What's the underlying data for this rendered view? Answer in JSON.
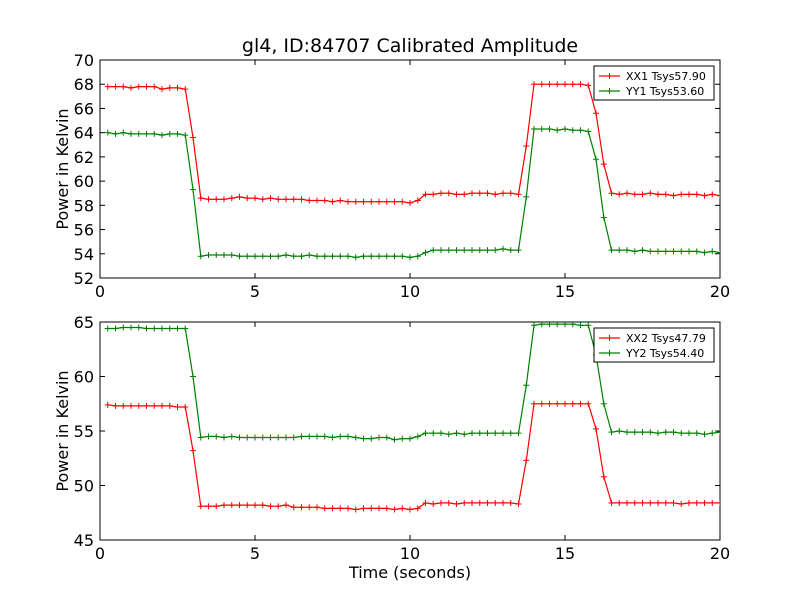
{
  "chart_data": [
    {
      "type": "line",
      "title": "gl4, ID:84707 Calibrated Amplitude",
      "xlabel": "",
      "ylabel": "Power in Kelvin",
      "xlim": [
        0,
        20
      ],
      "ylim": [
        52,
        70
      ],
      "xticks": [
        0,
        5,
        10,
        15,
        20
      ],
      "yticks": [
        52,
        54,
        56,
        58,
        60,
        62,
        64,
        66,
        68,
        70
      ],
      "grid": false,
      "legend": "top-right",
      "x": [
        0.25,
        0.5,
        0.75,
        1.0,
        1.25,
        1.5,
        1.75,
        2.0,
        2.25,
        2.5,
        2.75,
        3.0,
        3.25,
        3.5,
        3.75,
        4.0,
        4.25,
        4.5,
        4.75,
        5.0,
        5.25,
        5.5,
        5.75,
        6.0,
        6.25,
        6.5,
        6.75,
        7.0,
        7.25,
        7.5,
        7.75,
        8.0,
        8.25,
        8.5,
        8.75,
        9.0,
        9.25,
        9.5,
        9.75,
        10.0,
        10.25,
        10.5,
        10.75,
        11.0,
        11.25,
        11.5,
        11.75,
        12.0,
        12.25,
        12.5,
        12.75,
        13.0,
        13.25,
        13.5,
        13.75,
        14.0,
        14.25,
        14.5,
        14.75,
        15.0,
        15.25,
        15.5,
        15.75,
        16.0,
        16.25,
        16.5,
        16.75,
        17.0,
        17.25,
        17.5,
        17.75,
        18.0,
        18.25,
        18.5,
        18.75,
        19.0,
        19.25,
        19.5,
        19.75,
        20.0
      ],
      "series": [
        {
          "name": "XX1 Tsys57.90",
          "color": "#ff0000",
          "values": [
            67.8,
            67.8,
            67.8,
            67.7,
            67.8,
            67.8,
            67.8,
            67.6,
            67.7,
            67.7,
            67.6,
            63.6,
            58.6,
            58.5,
            58.5,
            58.5,
            58.6,
            58.7,
            58.6,
            58.6,
            58.5,
            58.6,
            58.5,
            58.5,
            58.5,
            58.5,
            58.4,
            58.4,
            58.4,
            58.3,
            58.4,
            58.3,
            58.3,
            58.3,
            58.3,
            58.3,
            58.3,
            58.3,
            58.3,
            58.2,
            58.4,
            58.9,
            58.9,
            59.0,
            59.0,
            58.9,
            58.9,
            59.0,
            59.0,
            59.0,
            58.9,
            59.0,
            59.0,
            58.9,
            62.9,
            68.0,
            68.0,
            68.0,
            68.0,
            68.0,
            68.0,
            68.0,
            67.9,
            65.6,
            61.4,
            59.0,
            58.9,
            59.0,
            58.9,
            58.9,
            59.0,
            58.9,
            58.9,
            58.8,
            58.9,
            58.9,
            58.9,
            58.8,
            58.9,
            58.8
          ]
        },
        {
          "name": "YY1 Tsys53.60",
          "color": "#008000",
          "values": [
            64.0,
            63.9,
            64.0,
            63.9,
            63.9,
            63.9,
            63.9,
            63.8,
            63.9,
            63.9,
            63.8,
            59.3,
            53.8,
            53.9,
            53.9,
            53.9,
            53.9,
            53.8,
            53.8,
            53.8,
            53.8,
            53.8,
            53.8,
            53.9,
            53.8,
            53.8,
            53.9,
            53.8,
            53.8,
            53.8,
            53.8,
            53.8,
            53.7,
            53.8,
            53.8,
            53.8,
            53.8,
            53.8,
            53.8,
            53.7,
            53.8,
            54.1,
            54.3,
            54.3,
            54.3,
            54.3,
            54.3,
            54.3,
            54.3,
            54.3,
            54.3,
            54.4,
            54.3,
            54.3,
            58.7,
            64.3,
            64.3,
            64.3,
            64.2,
            64.3,
            64.2,
            64.2,
            64.1,
            61.8,
            57.0,
            54.3,
            54.3,
            54.3,
            54.2,
            54.3,
            54.2,
            54.2,
            54.2,
            54.2,
            54.2,
            54.2,
            54.2,
            54.1,
            54.2,
            54.1
          ]
        }
      ]
    },
    {
      "type": "line",
      "title": "",
      "xlabel": "Time (seconds)",
      "ylabel": "Power in Kelvin",
      "xlim": [
        0,
        20
      ],
      "ylim": [
        45,
        65
      ],
      "xticks": [
        0,
        5,
        10,
        15,
        20
      ],
      "yticks": [
        45,
        50,
        55,
        60,
        65
      ],
      "grid": false,
      "legend": "top-right",
      "x": [
        0.25,
        0.5,
        0.75,
        1.0,
        1.25,
        1.5,
        1.75,
        2.0,
        2.25,
        2.5,
        2.75,
        3.0,
        3.25,
        3.5,
        3.75,
        4.0,
        4.25,
        4.5,
        4.75,
        5.0,
        5.25,
        5.5,
        5.75,
        6.0,
        6.25,
        6.5,
        6.75,
        7.0,
        7.25,
        7.5,
        7.75,
        8.0,
        8.25,
        8.5,
        8.75,
        9.0,
        9.25,
        9.5,
        9.75,
        10.0,
        10.25,
        10.5,
        10.75,
        11.0,
        11.25,
        11.5,
        11.75,
        12.0,
        12.25,
        12.5,
        12.75,
        13.0,
        13.25,
        13.5,
        13.75,
        14.0,
        14.25,
        14.5,
        14.75,
        15.0,
        15.25,
        15.5,
        15.75,
        16.0,
        16.25,
        16.5,
        16.75,
        17.0,
        17.25,
        17.5,
        17.75,
        18.0,
        18.25,
        18.5,
        18.75,
        19.0,
        19.25,
        19.5,
        19.75,
        20.0
      ],
      "series": [
        {
          "name": "XX2 Tsys47.79",
          "color": "#ff0000",
          "values": [
            57.4,
            57.3,
            57.3,
            57.3,
            57.3,
            57.3,
            57.3,
            57.3,
            57.3,
            57.2,
            57.2,
            53.2,
            48.1,
            48.1,
            48.1,
            48.2,
            48.2,
            48.2,
            48.2,
            48.2,
            48.2,
            48.1,
            48.1,
            48.2,
            48.0,
            48.0,
            48.0,
            48.0,
            47.9,
            47.9,
            47.9,
            47.9,
            47.8,
            47.9,
            47.9,
            47.9,
            47.9,
            47.8,
            47.9,
            47.8,
            47.9,
            48.4,
            48.3,
            48.4,
            48.4,
            48.3,
            48.4,
            48.4,
            48.4,
            48.4,
            48.4,
            48.4,
            48.4,
            48.3,
            52.3,
            57.5,
            57.5,
            57.5,
            57.5,
            57.5,
            57.5,
            57.5,
            57.5,
            55.2,
            50.8,
            48.4,
            48.4,
            48.4,
            48.4,
            48.4,
            48.4,
            48.4,
            48.4,
            48.4,
            48.3,
            48.4,
            48.4,
            48.4,
            48.4,
            48.4
          ]
        },
        {
          "name": "YY2 Tsys54.40",
          "color": "#008000",
          "values": [
            64.4,
            64.4,
            64.5,
            64.5,
            64.5,
            64.4,
            64.4,
            64.4,
            64.4,
            64.4,
            64.4,
            60.0,
            54.4,
            54.5,
            54.5,
            54.4,
            54.5,
            54.4,
            54.4,
            54.4,
            54.4,
            54.4,
            54.4,
            54.4,
            54.4,
            54.5,
            54.5,
            54.5,
            54.5,
            54.4,
            54.5,
            54.5,
            54.4,
            54.3,
            54.3,
            54.4,
            54.4,
            54.2,
            54.3,
            54.3,
            54.5,
            54.8,
            54.8,
            54.8,
            54.7,
            54.8,
            54.7,
            54.8,
            54.8,
            54.8,
            54.8,
            54.8,
            54.8,
            54.8,
            59.2,
            64.7,
            64.8,
            64.8,
            64.8,
            64.8,
            64.8,
            64.7,
            64.7,
            62.0,
            57.5,
            54.9,
            55.0,
            54.9,
            54.9,
            54.9,
            54.9,
            54.8,
            54.9,
            54.9,
            54.8,
            54.8,
            54.8,
            54.7,
            54.8,
            54.9
          ]
        }
      ]
    }
  ]
}
